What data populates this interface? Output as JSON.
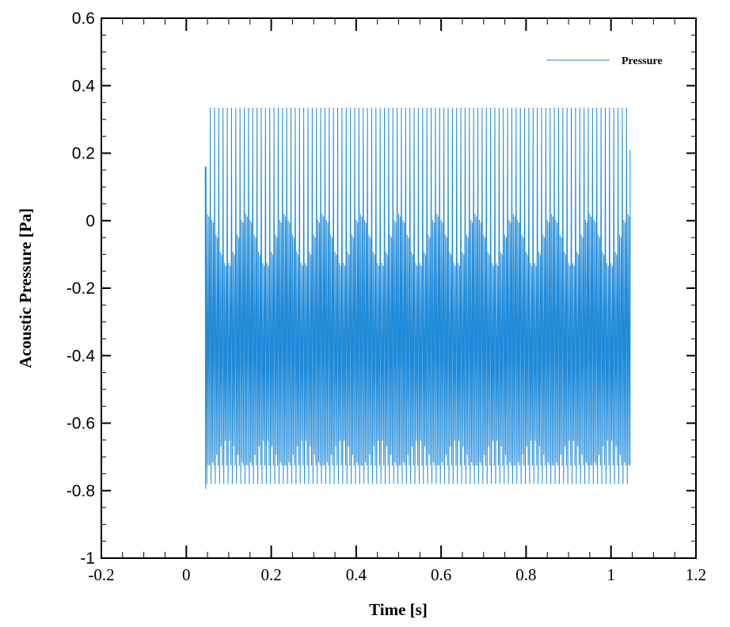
{
  "chart_data": {
    "type": "line",
    "title": "",
    "xlabel": "Time [s]",
    "ylabel": "Acoustic Pressure [Pa]",
    "xlim": [
      -0.2,
      1.2
    ],
    "ylim": [
      -1,
      0.6
    ],
    "x_ticks": [
      -0.2,
      0,
      0.2,
      0.4,
      0.6,
      0.8,
      1,
      1.2
    ],
    "x_tick_labels": [
      "-0.2",
      "0",
      "0.2",
      "0.4",
      "0.6",
      "0.8",
      "1",
      "1.2"
    ],
    "y_ticks": [
      -1,
      -0.8,
      -0.6,
      -0.4,
      -0.2,
      0,
      0.2,
      0.4,
      0.6
    ],
    "y_tick_labels": [
      "-1",
      "-0.8",
      "-0.6",
      "-0.4",
      "-0.2",
      "0",
      "0.2",
      "0.4",
      "0.6"
    ],
    "grid": false,
    "legend_position": "top-right",
    "series": [
      {
        "name": "Pressure",
        "color": "#1f8ad8",
        "signal": {
          "t_start": 0.045,
          "t_end": 1.045,
          "fundamental_hz": 100,
          "primary_peak_max": 0.335,
          "secondary_peak_max": 0.02,
          "trough_min": -0.78,
          "secondary_trough": -0.725,
          "first_value": 0.16,
          "first_trough": -0.795,
          "last_value": 0.21
        }
      }
    ]
  }
}
